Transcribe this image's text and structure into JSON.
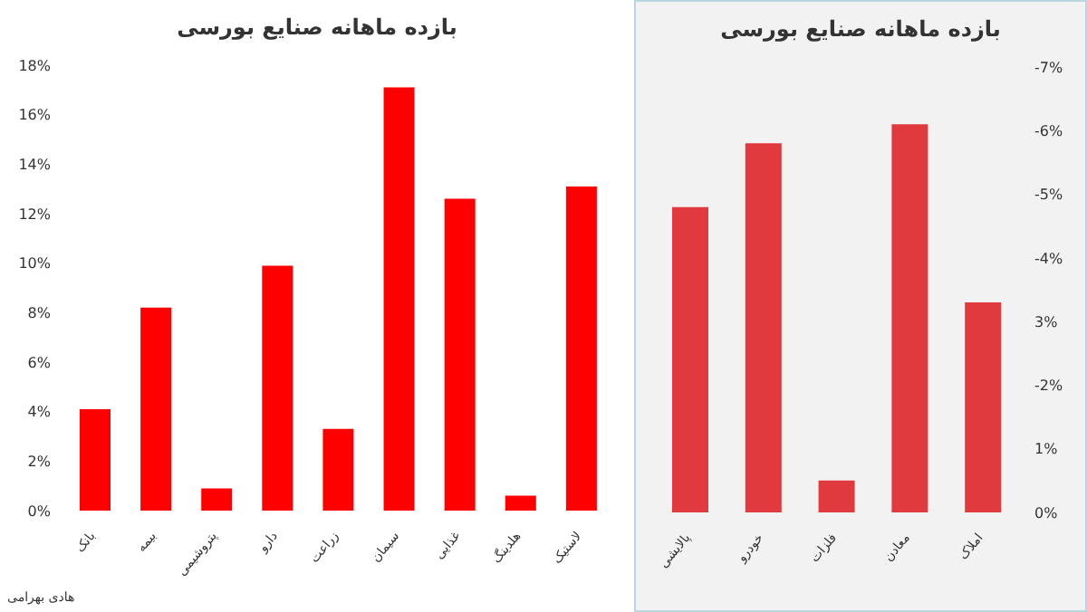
{
  "chart_data": [
    {
      "type": "bar",
      "title": "بازده ماهانه صنایع بورسی",
      "categories": [
        "بانک",
        "بیمه",
        "پتروشیمی",
        "دارو",
        "زراعت",
        "سیمان",
        "غذایی",
        "هلدینگ",
        "لاستیک"
      ],
      "values": [
        4.1,
        8.2,
        0.9,
        9.9,
        3.3,
        17.1,
        12.6,
        0.6,
        13.1
      ],
      "color": "#ff0000",
      "ylim": [
        0,
        18
      ],
      "yticks": [
        {
          "value": 0,
          "label": "0%"
        },
        {
          "value": 2,
          "label": "2%"
        },
        {
          "value": 4,
          "label": "4%"
        },
        {
          "value": 6,
          "label": "6%"
        },
        {
          "value": 8,
          "label": "8%"
        },
        {
          "value": 10,
          "label": "10%"
        },
        {
          "value": 12,
          "label": "12%"
        },
        {
          "value": 14,
          "label": "14%"
        },
        {
          "value": 16,
          "label": "16%"
        },
        {
          "value": 18,
          "label": "18%"
        }
      ],
      "grid": false,
      "annotations": [
        "هادی بهرامی"
      ]
    },
    {
      "type": "bar",
      "title": "بازده ماهانه صنایع بورسی",
      "categories": [
        "پالایشی",
        "خودرو",
        "فلزات",
        "معادن",
        "املاک"
      ],
      "values": [
        -4.8,
        -5.8,
        -0.5,
        -6.1,
        -3.3
      ],
      "color": "#e03a3e",
      "ylim": [
        0,
        -7
      ],
      "yticks": [
        {
          "value": 0,
          "label": "0%"
        },
        {
          "value": -1,
          "label": "1%"
        },
        {
          "value": -2,
          "label": "-2%"
        },
        {
          "value": -3,
          "label": "3%"
        },
        {
          "value": -4,
          "label": "-4%"
        },
        {
          "value": -5,
          "label": "-5%"
        },
        {
          "value": -6,
          "label": "-6%"
        },
        {
          "value": -7,
          "label": "-7%"
        }
      ],
      "grid": false
    }
  ]
}
